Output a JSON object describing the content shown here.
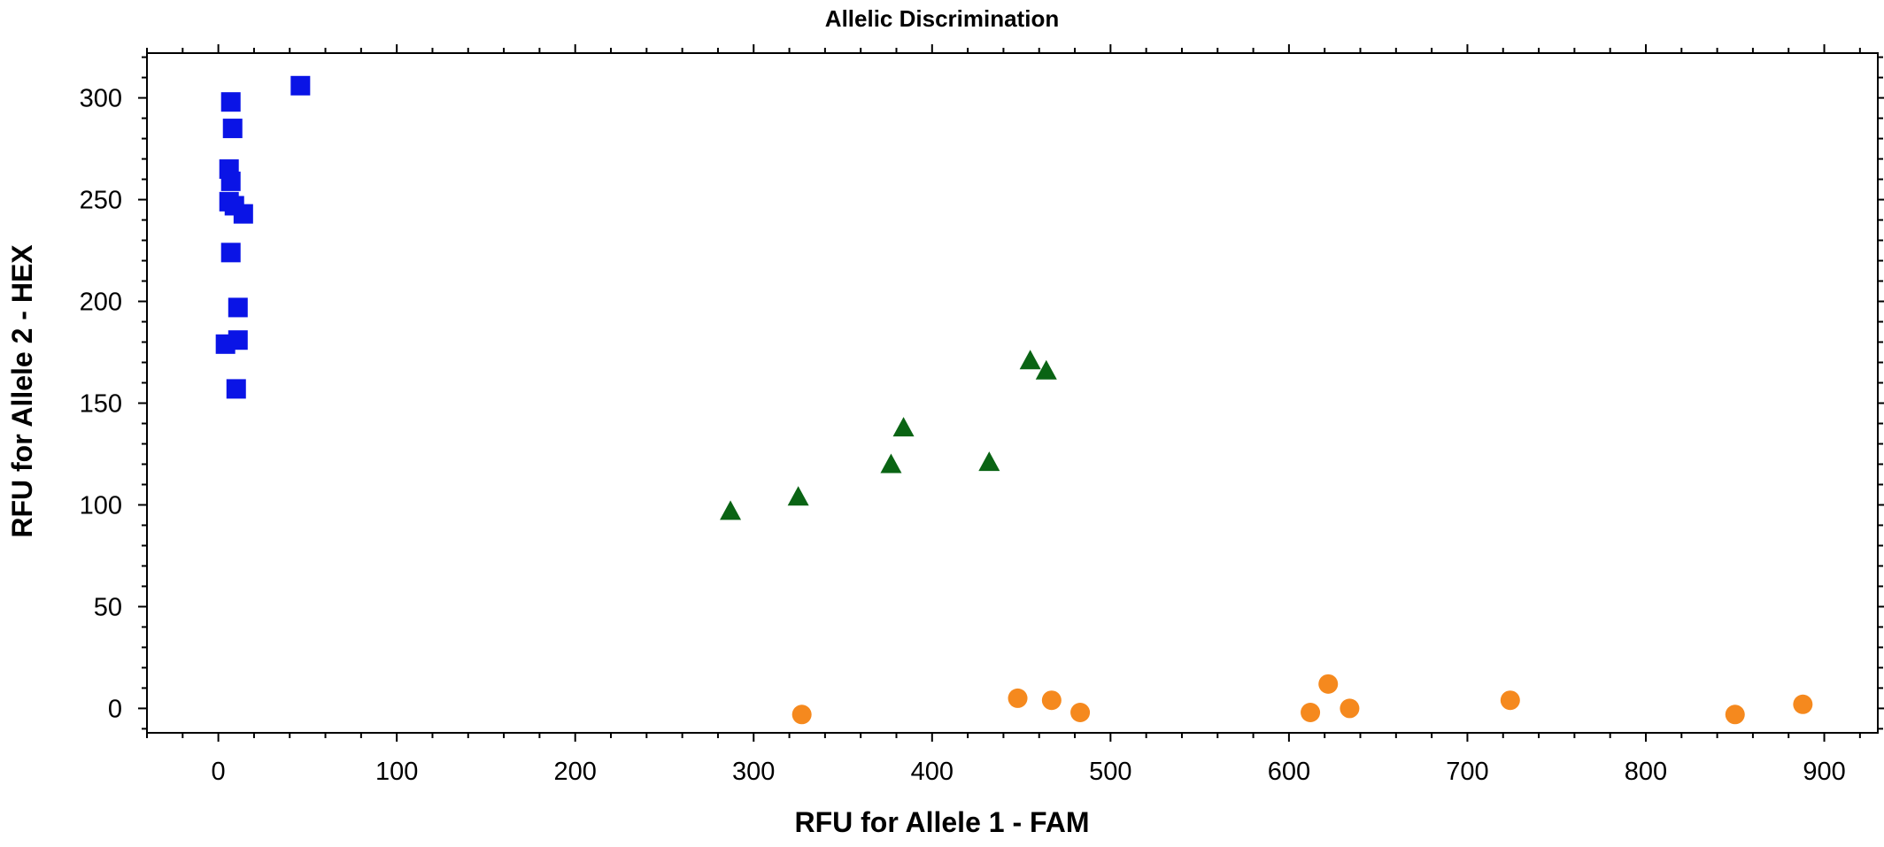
{
  "chart_data": {
    "type": "scatter",
    "title": "Allelic Discrimination",
    "xlabel": "RFU for Allele 1 - FAM",
    "ylabel": "RFU for Allele 2 - HEX",
    "xlim": [
      -40,
      930
    ],
    "ylim": [
      -12,
      322
    ],
    "x_ticks": [
      0,
      100,
      200,
      300,
      400,
      500,
      600,
      700,
      800,
      900
    ],
    "y_ticks": [
      0,
      50,
      100,
      150,
      200,
      250,
      300
    ],
    "x_minor_step": 20,
    "y_minor_step": 10,
    "grid": false,
    "legend": "none",
    "series": [
      {
        "marker": "square",
        "color": "#0a14e6",
        "points": [
          [
            7,
            298
          ],
          [
            8,
            285
          ],
          [
            6,
            265
          ],
          [
            7,
            259
          ],
          [
            6,
            249
          ],
          [
            9,
            247
          ],
          [
            14,
            243
          ],
          [
            7,
            224
          ],
          [
            11,
            197
          ],
          [
            4,
            179
          ],
          [
            11,
            181
          ],
          [
            10,
            157
          ],
          [
            46,
            306
          ]
        ]
      },
      {
        "marker": "triangle",
        "color": "#0a6414",
        "points": [
          [
            287,
            97
          ],
          [
            325,
            104
          ],
          [
            377,
            120
          ],
          [
            384,
            138
          ],
          [
            432,
            121
          ],
          [
            455,
            171
          ],
          [
            464,
            166
          ]
        ]
      },
      {
        "marker": "circle",
        "color": "#f5891e",
        "points": [
          [
            327,
            -3
          ],
          [
            448,
            5
          ],
          [
            467,
            4
          ],
          [
            483,
            -2
          ],
          [
            612,
            -2
          ],
          [
            622,
            12
          ],
          [
            634,
            0
          ],
          [
            724,
            4
          ],
          [
            850,
            -3
          ],
          [
            888,
            2
          ]
        ]
      }
    ]
  }
}
